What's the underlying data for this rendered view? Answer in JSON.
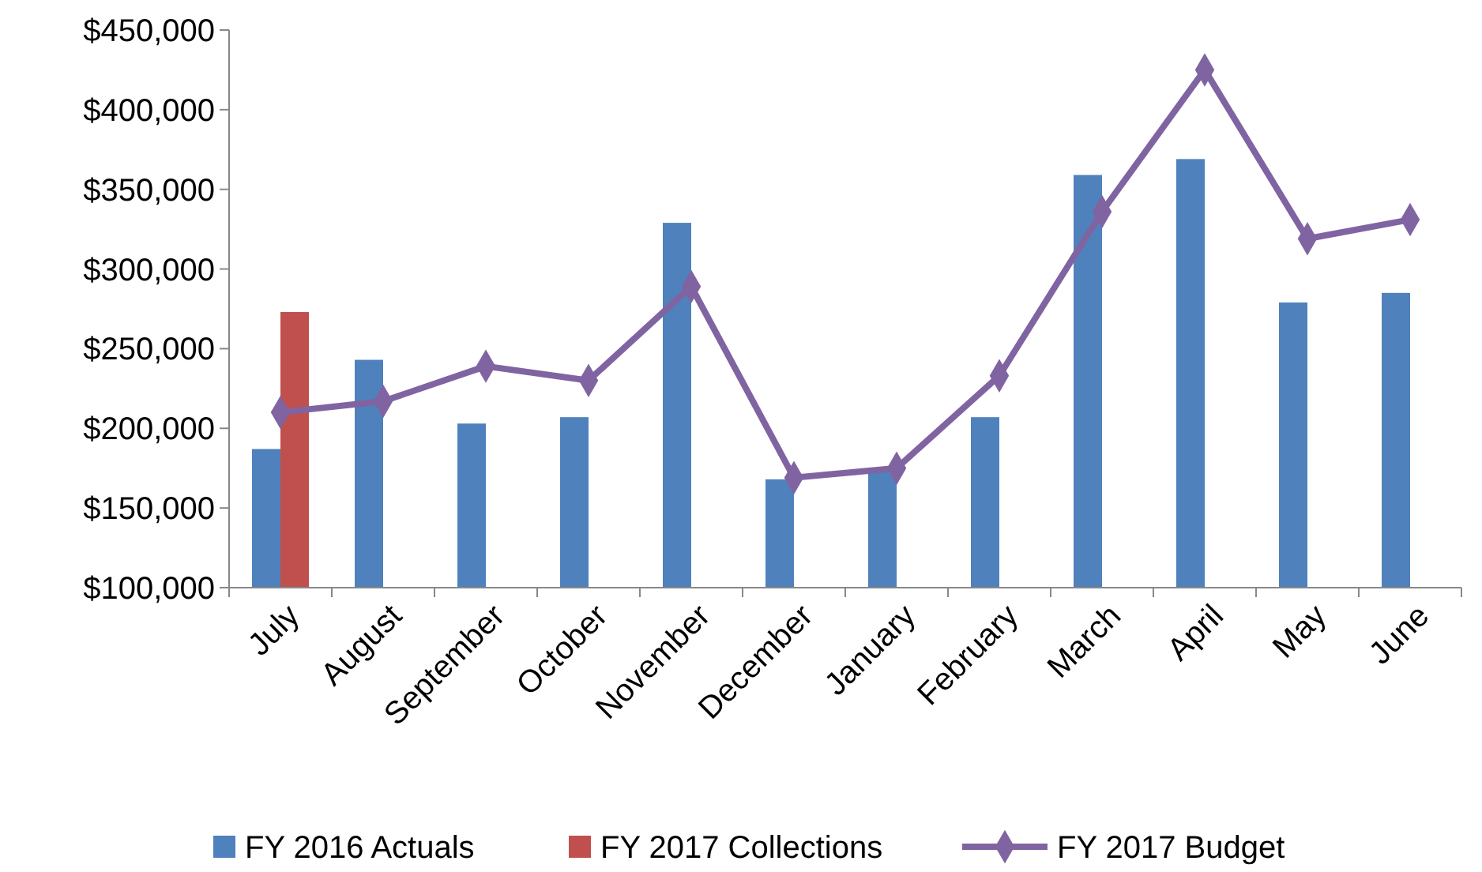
{
  "chart_data": {
    "type": "bar",
    "categories": [
      "July",
      "August",
      "September",
      "October",
      "November",
      "December",
      "January",
      "February",
      "March",
      "April",
      "May",
      "June"
    ],
    "series": [
      {
        "name": "FY 2016 Actuals",
        "color": "#4f81bd",
        "values": [
          187000,
          243000,
          203000,
          207000,
          329000,
          168000,
          174000,
          207000,
          359000,
          369000,
          279000,
          285000
        ]
      },
      {
        "name": "FY 2017 Collections",
        "color": "#c0504d",
        "values": [
          273000,
          null,
          null,
          null,
          null,
          null,
          null,
          null,
          null,
          null,
          null,
          null
        ]
      },
      {
        "name": "FY 2017 Budget",
        "type": "line",
        "color": "#8064a2",
        "marker": "diamond",
        "values": [
          210000,
          217000,
          239000,
          230000,
          289000,
          169000,
          175000,
          233000,
          336000,
          425000,
          319000,
          331000
        ]
      }
    ],
    "ylim": [
      100000,
      450000
    ],
    "yticks": [
      {
        "value": 100000,
        "label": "$100,000"
      },
      {
        "value": 150000,
        "label": "$150,000"
      },
      {
        "value": 200000,
        "label": "$200,000"
      },
      {
        "value": 250000,
        "label": "$250,000"
      },
      {
        "value": 300000,
        "label": "$300,000"
      },
      {
        "value": 350000,
        "label": "$350,000"
      },
      {
        "value": 400000,
        "label": "$400,000"
      },
      {
        "value": 450000,
        "label": "$450,000"
      }
    ],
    "grid": false,
    "legend": "bottom"
  }
}
